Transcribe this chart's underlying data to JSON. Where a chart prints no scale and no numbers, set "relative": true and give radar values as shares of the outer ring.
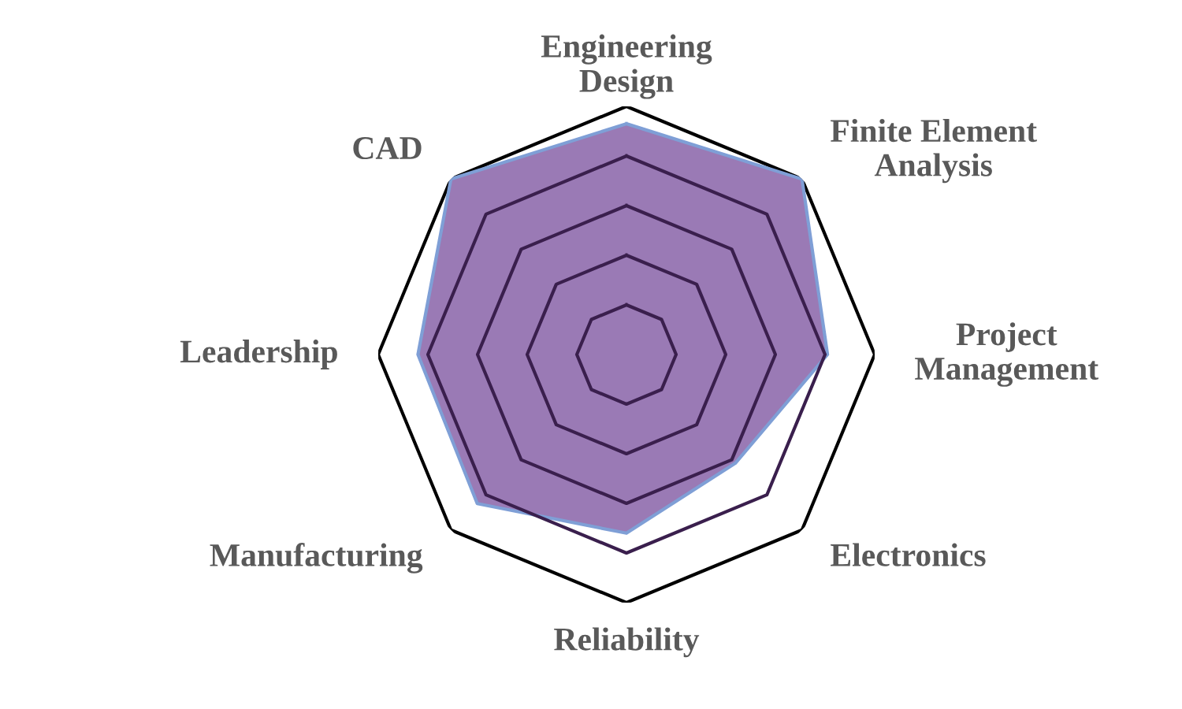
{
  "chart_data": {
    "type": "radar",
    "relative": true,
    "grid": true,
    "categories": [
      "Engineering\nDesign",
      "Finite Element\nAnalysis",
      "Project\nManagement",
      "Electronics",
      "Reliability",
      "Manufacturing",
      "Leadership",
      "CAD"
    ],
    "series": [
      {
        "color": "#9a7ab5",
        "values": [
          0.93,
          1.0,
          0.81,
          0.62,
          0.72,
          0.85,
          0.84,
          1.0
        ]
      }
    ]
  }
}
